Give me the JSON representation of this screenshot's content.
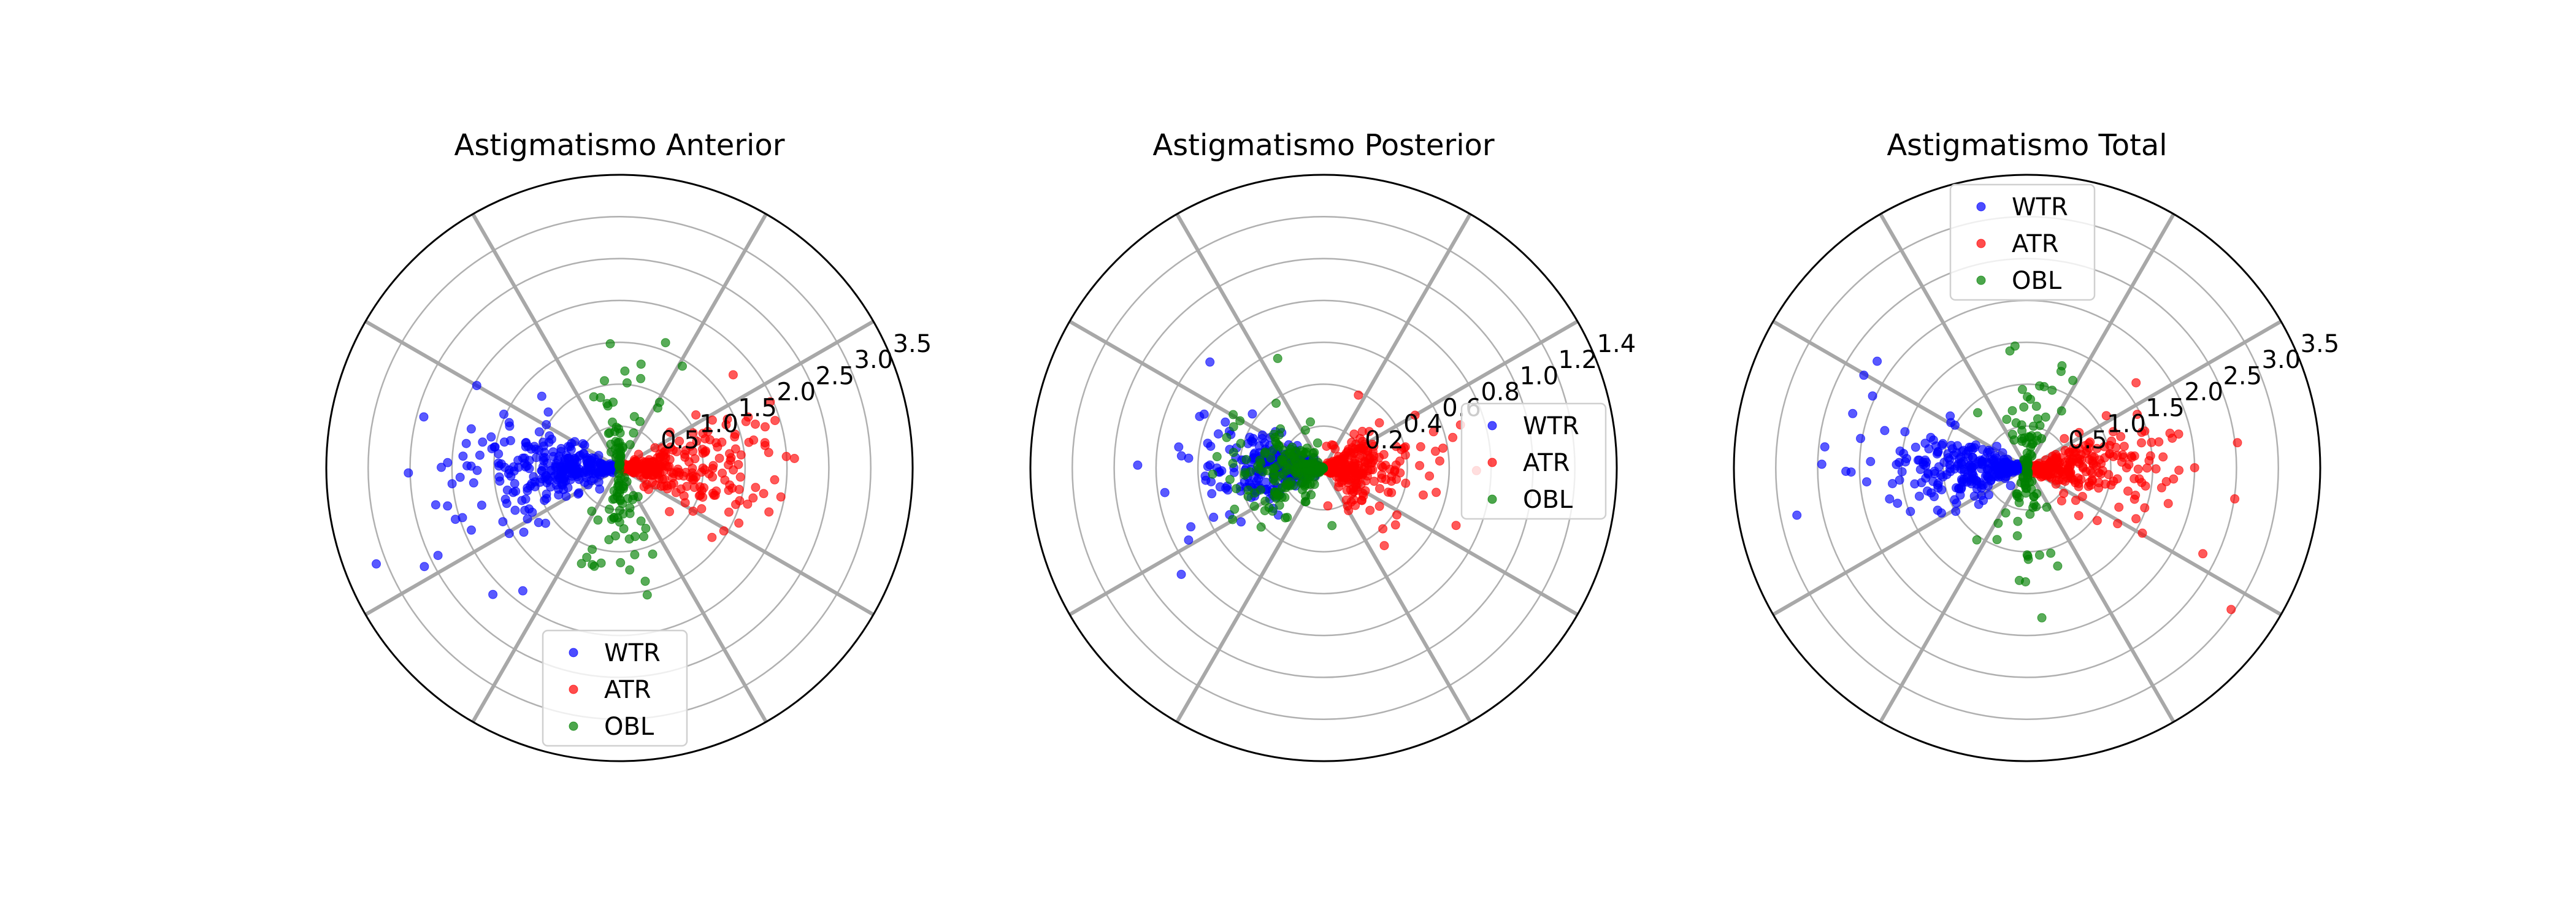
{
  "chart_data": [
    {
      "type": "scatter",
      "projection": "polar",
      "title": "Astigmatismo Anterior",
      "rmax": 3.5,
      "rticks": [
        0.5,
        1.0,
        1.5,
        2.0,
        2.5,
        3.0,
        3.5
      ],
      "rtick_labels": [
        "0.5",
        "1.0",
        "1.5",
        "2.0",
        "2.5",
        "3.0",
        "3.5"
      ],
      "rlabel_angle_deg": 22.5,
      "boundary_lines_deg": [
        30,
        60,
        120,
        150
      ],
      "grid": true,
      "legend": {
        "entries": [
          "WTR",
          "ATR",
          "OBL"
        ],
        "placement": "lower center"
      },
      "series": [
        {
          "name": "WTR",
          "color": "#0000ff",
          "n": 300,
          "theta_center_deg": 180,
          "theta_spread_deg": 30,
          "r_scale": 0.9,
          "r_max": 3.4,
          "seed": 11
        },
        {
          "name": "ATR",
          "color": "#ff0000",
          "n": 250,
          "theta_center_deg": 0,
          "theta_spread_deg": 30,
          "r_scale": 0.85,
          "r_max": 3.3,
          "seed": 12
        },
        {
          "name": "OBL",
          "color": "#008000",
          "n": 110,
          "theta_center_deg": 90,
          "theta_spread_deg": 30,
          "r_scale": 0.6,
          "r_max": 3.0,
          "seed": 13,
          "opposite_lobes": true
        }
      ]
    },
    {
      "type": "scatter",
      "projection": "polar",
      "title": "Astigmatismo Posterior",
      "rmax": 1.4,
      "rticks": [
        0.2,
        0.4,
        0.6,
        0.8,
        1.0,
        1.2,
        1.4
      ],
      "rtick_labels": [
        "0.2",
        "0.4",
        "0.6",
        "0.8",
        "1.0",
        "1.2",
        "1.4"
      ],
      "rlabel_angle_deg": 22.5,
      "boundary_lines_deg": [
        30,
        60,
        120,
        150
      ],
      "grid": true,
      "legend": {
        "entries": [
          "WTR",
          "ATR",
          "OBL"
        ],
        "placement": "center right"
      },
      "series": [
        {
          "name": "WTR",
          "color": "#0000ff",
          "n": 300,
          "theta_center_deg": 180,
          "theta_spread_deg": 35,
          "r_scale": 0.3,
          "r_max": 1.3,
          "seed": 21
        },
        {
          "name": "ATR",
          "color": "#ff0000",
          "n": 260,
          "theta_center_deg": 0,
          "theta_spread_deg": 50,
          "r_scale": 0.22,
          "r_max": 1.2,
          "seed": 22
        },
        {
          "name": "OBL",
          "color": "#008000",
          "n": 200,
          "theta_center_deg": 180,
          "theta_spread_deg": 60,
          "r_scale": 0.22,
          "r_max": 1.2,
          "seed": 23
        }
      ]
    },
    {
      "type": "scatter",
      "projection": "polar",
      "title": "Astigmatismo Total",
      "rmax": 3.5,
      "rticks": [
        0.5,
        1.0,
        1.5,
        2.0,
        2.5,
        3.0,
        3.5
      ],
      "rtick_labels": [
        "0.5",
        "1.0",
        "1.5",
        "2.0",
        "2.5",
        "3.0",
        "3.5"
      ],
      "rlabel_angle_deg": 22.5,
      "boundary_lines_deg": [
        30,
        60,
        120,
        150
      ],
      "grid": true,
      "legend": {
        "entries": [
          "WTR",
          "ATR",
          "OBL"
        ],
        "placement": "upper center"
      },
      "series": [
        {
          "name": "WTR",
          "color": "#0000ff",
          "n": 300,
          "theta_center_deg": 180,
          "theta_spread_deg": 30,
          "r_scale": 0.85,
          "r_max": 3.4,
          "seed": 31
        },
        {
          "name": "ATR",
          "color": "#ff0000",
          "n": 260,
          "theta_center_deg": 0,
          "theta_spread_deg": 30,
          "r_scale": 0.8,
          "r_max": 3.5,
          "seed": 32
        },
        {
          "name": "OBL",
          "color": "#008000",
          "n": 110,
          "theta_center_deg": 90,
          "theta_spread_deg": 30,
          "r_scale": 0.6,
          "r_max": 2.8,
          "seed": 33,
          "opposite_lobes": true
        }
      ]
    }
  ]
}
